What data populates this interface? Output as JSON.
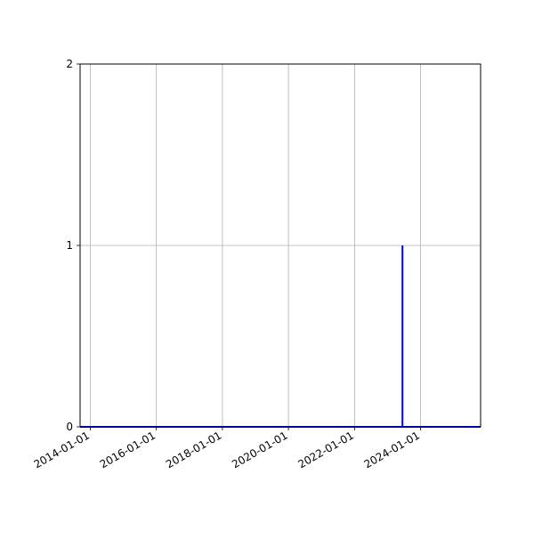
{
  "chart_data": {
    "type": "line",
    "title": "",
    "xlabel": "",
    "ylabel": "",
    "x_type": "date",
    "xlim": [
      "2013-09-10",
      "2025-10-26"
    ],
    "ylim": [
      0,
      2
    ],
    "grid": true,
    "x_ticks": [
      "2014-01-01",
      "2016-01-01",
      "2018-01-01",
      "2020-01-01",
      "2022-01-01",
      "2024-01-01"
    ],
    "y_ticks": [
      0,
      1,
      2
    ],
    "series": [
      {
        "color": "#0000ff",
        "points": [
          [
            "2013-09-10",
            0
          ],
          [
            "2023-06-15",
            0
          ],
          [
            "2023-06-15",
            1
          ],
          [
            "2023-06-15",
            0
          ],
          [
            "2025-10-26",
            0
          ]
        ]
      }
    ]
  }
}
